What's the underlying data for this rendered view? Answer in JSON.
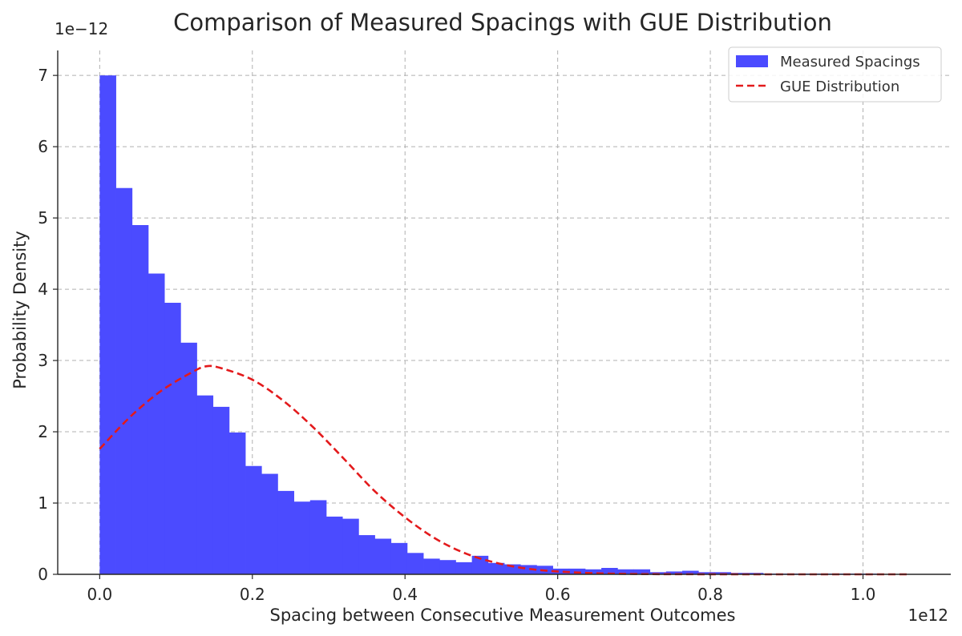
{
  "chart_data": {
    "type": "bar",
    "title": "Comparison of Measured Spacings with GUE Distribution",
    "xlabel": "Spacing between Consecutive Measurement Outcomes",
    "ylabel": "Probability Density",
    "x_exponent_label": "1e12",
    "y_exponent_label": "1e−12",
    "x_scale": 1000000000000.0,
    "y_scale": 1e-12,
    "xlim": [
      -0.055,
      1.115
    ],
    "ylim": [
      0,
      7.35
    ],
    "x_ticks": [
      0.0,
      0.2,
      0.4,
      0.6,
      0.8,
      1.0
    ],
    "x_tick_labels": [
      "0.0",
      "0.2",
      "0.4",
      "0.6",
      "0.8",
      "1.0"
    ],
    "y_ticks": [
      0,
      1,
      2,
      3,
      4,
      5,
      6,
      7
    ],
    "y_tick_labels": [
      "0",
      "1",
      "2",
      "3",
      "4",
      "5",
      "6",
      "7"
    ],
    "grid": true,
    "legend_position": "top-right",
    "colors": {
      "histogram": "#4b4bff",
      "gue_line": "#e31a1c",
      "axes": "#262626",
      "grid": "#b0b0b0"
    },
    "series": [
      {
        "name": "Measured Spacings",
        "type": "histogram",
        "bin_start": 0.0,
        "bin_width": 0.0212,
        "values": [
          7.0,
          5.42,
          4.9,
          4.22,
          3.81,
          3.25,
          2.51,
          2.35,
          1.99,
          1.52,
          1.41,
          1.17,
          1.02,
          1.04,
          0.81,
          0.78,
          0.55,
          0.5,
          0.44,
          0.3,
          0.22,
          0.2,
          0.17,
          0.26,
          0.16,
          0.14,
          0.13,
          0.12,
          0.08,
          0.08,
          0.07,
          0.09,
          0.07,
          0.07,
          0.03,
          0.04,
          0.05,
          0.03,
          0.03,
          0.02,
          0.02,
          0.01,
          0.01,
          0.01,
          0.01,
          0.01,
          0.01,
          0.01,
          0.005,
          0.005
        ]
      },
      {
        "name": "GUE Distribution",
        "type": "line",
        "style": "dashed",
        "x": [
          0.0,
          0.04,
          0.08,
          0.12,
          0.14,
          0.16,
          0.2,
          0.24,
          0.28,
          0.32,
          0.36,
          0.4,
          0.44,
          0.48,
          0.52,
          0.56,
          0.6,
          0.65,
          0.7,
          0.75,
          0.8,
          0.85,
          0.9,
          0.95,
          1.0,
          1.06
        ],
        "y": [
          1.76,
          2.21,
          2.57,
          2.83,
          2.92,
          2.89,
          2.73,
          2.44,
          2.06,
          1.62,
          1.17,
          0.8,
          0.5,
          0.29,
          0.16,
          0.08,
          0.04,
          0.015,
          0.005,
          0.002,
          0.001,
          0.0,
          0.0,
          0.0,
          0.0,
          0.0
        ]
      }
    ]
  }
}
